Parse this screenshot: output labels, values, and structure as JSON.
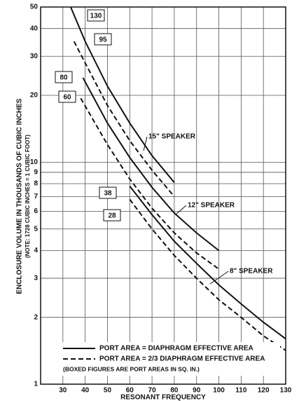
{
  "chart_data": {
    "type": "line",
    "x_label": "RESONANT FREQUENCY",
    "y_label": "ENCLOSURE VOLUME IN THOUSANDS OF CUBIC INCHES",
    "y_label_note": "(NOTE: 1728 CUBIC INCHES = 1 CUBIC FOOT)",
    "xlim": [
      20,
      130
    ],
    "xticks": [
      30,
      40,
      50,
      60,
      70,
      80,
      90,
      100,
      110,
      120,
      130
    ],
    "ylim": [
      1,
      50
    ],
    "yticks": [
      1,
      2,
      3,
      4,
      5,
      6,
      7,
      8,
      9,
      10,
      20,
      30,
      40,
      50
    ],
    "log_y": true,
    "grid": true,
    "series": [
      {
        "name": "130",
        "style": "solid",
        "color": "#111111",
        "x": [
          33.5,
          40,
          50,
          60,
          70,
          80
        ],
        "values": [
          50,
          35,
          22,
          15,
          10.7,
          8.1
        ]
      },
      {
        "name": "95",
        "style": "dashed",
        "color": "#111111",
        "x": [
          35,
          40,
          50,
          60,
          70,
          80
        ],
        "values": [
          35,
          28,
          18,
          12.5,
          9.2,
          7
        ]
      },
      {
        "name": "80",
        "style": "solid",
        "color": "#111111",
        "x": [
          39,
          50,
          60,
          70,
          80,
          90,
          100
        ],
        "values": [
          24,
          15,
          10.5,
          7.7,
          5.9,
          4.8,
          4
        ]
      },
      {
        "name": "60",
        "style": "dashed",
        "color": "#111111",
        "x": [
          38,
          50,
          60,
          70,
          80,
          90,
          100
        ],
        "values": [
          19.4,
          12,
          8.4,
          6.2,
          4.8,
          3.9,
          3.3
        ]
      },
      {
        "name": "38",
        "style": "solid",
        "color": "#111111",
        "x": [
          60,
          70,
          80,
          90,
          100,
          110,
          120,
          130
        ],
        "values": [
          7.8,
          5.8,
          4.4,
          3.5,
          2.8,
          2.3,
          1.9,
          1.6
        ]
      },
      {
        "name": "28",
        "style": "dashed",
        "color": "#111111",
        "x": [
          60,
          70,
          80,
          90,
          100,
          110,
          120,
          130
        ],
        "values": [
          6.8,
          5,
          3.8,
          3,
          2.4,
          2,
          1.65,
          1.42
        ]
      }
    ],
    "annotations": [
      "15\" SPEAKER",
      "12\" SPEAKER",
      "8\" SPEAKER"
    ],
    "legend": [
      {
        "label": "PORT AREA = DIAPHRAGM EFFECTIVE AREA",
        "style": "solid"
      },
      {
        "label": "PORT AREA = 2/3 DIAPHRAGM EFFECTIVE AREA",
        "style": "dashed"
      }
    ],
    "legend_note": "(BOXED FIGURES ARE PORT AREAS IN SQ. IN.)"
  }
}
